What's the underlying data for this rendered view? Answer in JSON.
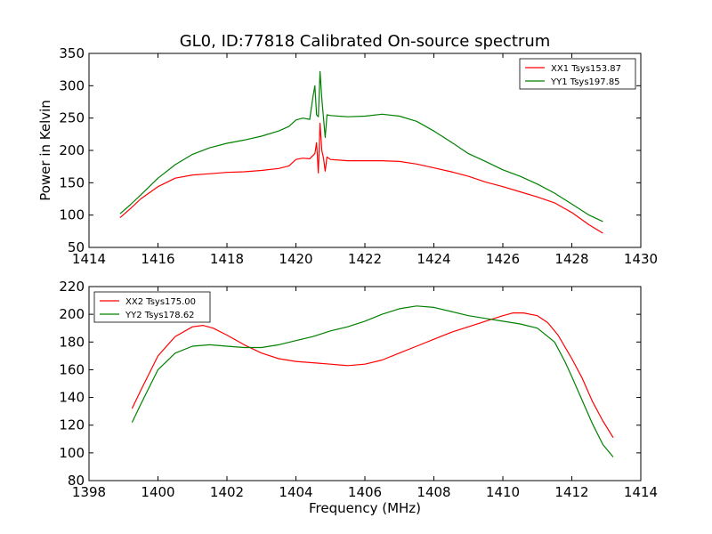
{
  "figure": {
    "title": "GL0, ID:77818 Calibrated On-source spectrum",
    "xlabel_bottom": "Frequency (MHz)"
  },
  "chart_data": [
    {
      "type": "line",
      "ylabel": "Power in Kelvin",
      "xlim": [
        1414,
        1430
      ],
      "ylim": [
        50,
        350
      ],
      "xticks": [
        1414,
        1416,
        1418,
        1420,
        1422,
        1424,
        1426,
        1428,
        1430
      ],
      "yticks": [
        50,
        100,
        150,
        200,
        250,
        300,
        350
      ],
      "legend_position": "top-right",
      "series": [
        {
          "name": "XX1 Tsys153.87",
          "color": "#ff0000",
          "x": [
            1414.9,
            1415.2,
            1415.5,
            1416.0,
            1416.5,
            1417.0,
            1417.5,
            1418.0,
            1418.5,
            1419.0,
            1419.5,
            1419.8,
            1420.0,
            1420.2,
            1420.4,
            1420.55,
            1420.6,
            1420.65,
            1420.7,
            1420.75,
            1420.8,
            1420.85,
            1420.9,
            1421.0,
            1421.5,
            1422.0,
            1422.5,
            1423.0,
            1423.5,
            1424.0,
            1424.5,
            1425.0,
            1425.5,
            1426.0,
            1426.5,
            1427.0,
            1427.5,
            1428.0,
            1428.5,
            1428.9
          ],
          "y": [
            96,
            110,
            125,
            144,
            157,
            162,
            164,
            166,
            167,
            169,
            172,
            176,
            186,
            188,
            187,
            195,
            212,
            165,
            242,
            200,
            188,
            168,
            190,
            186,
            184,
            184,
            184,
            183,
            179,
            173,
            167,
            160,
            151,
            144,
            136,
            128,
            119,
            104,
            85,
            72
          ]
        },
        {
          "name": "YY1 Tsys197.85",
          "color": "#008000",
          "x": [
            1414.9,
            1415.2,
            1415.5,
            1416.0,
            1416.5,
            1417.0,
            1417.5,
            1418.0,
            1418.5,
            1419.0,
            1419.5,
            1419.8,
            1420.0,
            1420.2,
            1420.4,
            1420.5,
            1420.55,
            1420.6,
            1420.65,
            1420.7,
            1420.75,
            1420.8,
            1420.85,
            1420.9,
            1421.0,
            1421.5,
            1422.0,
            1422.5,
            1423.0,
            1423.5,
            1424.0,
            1424.5,
            1425.0,
            1425.5,
            1426.0,
            1426.5,
            1427.0,
            1427.5,
            1428.0,
            1428.5,
            1428.9
          ],
          "y": [
            102,
            116,
            131,
            157,
            178,
            194,
            204,
            211,
            216,
            222,
            230,
            237,
            247,
            250,
            248,
            285,
            300,
            255,
            252,
            322,
            280,
            250,
            220,
            255,
            254,
            252,
            253,
            256,
            253,
            245,
            230,
            213,
            195,
            183,
            170,
            160,
            148,
            134,
            117,
            100,
            90
          ]
        }
      ]
    },
    {
      "type": "line",
      "xlabel": "Frequency (MHz)",
      "xlim": [
        1398,
        1414
      ],
      "ylim": [
        80,
        220
      ],
      "xticks": [
        1398,
        1400,
        1402,
        1404,
        1406,
        1408,
        1410,
        1412,
        1414
      ],
      "yticks": [
        80,
        100,
        120,
        140,
        160,
        180,
        200,
        220
      ],
      "legend_position": "top-left",
      "series": [
        {
          "name": "XX2 Tsys175.00",
          "color": "#ff0000",
          "x": [
            1399.25,
            1399.5,
            1400.0,
            1400.5,
            1401.0,
            1401.3,
            1401.6,
            1402.0,
            1402.5,
            1403.0,
            1403.5,
            1404.0,
            1404.5,
            1405.0,
            1405.5,
            1406.0,
            1406.5,
            1407.0,
            1407.5,
            1408.0,
            1408.5,
            1409.0,
            1409.5,
            1410.0,
            1410.3,
            1410.6,
            1411.0,
            1411.3,
            1411.6,
            1412.0,
            1412.3,
            1412.6,
            1412.9,
            1413.2
          ],
          "y": [
            132,
            145,
            170,
            184,
            191,
            192,
            190,
            185,
            178,
            172,
            168,
            166,
            165,
            164,
            163,
            164,
            167,
            172,
            177,
            182,
            187,
            191,
            195,
            199,
            201,
            201,
            199,
            194,
            185,
            168,
            154,
            137,
            123,
            111
          ]
        },
        {
          "name": "YY2 Tsys178.62",
          "color": "#008000",
          "x": [
            1399.25,
            1399.5,
            1400.0,
            1400.5,
            1401.0,
            1401.5,
            1402.0,
            1402.5,
            1403.0,
            1403.5,
            1404.0,
            1404.5,
            1405.0,
            1405.5,
            1406.0,
            1406.5,
            1407.0,
            1407.5,
            1408.0,
            1408.5,
            1409.0,
            1409.5,
            1410.0,
            1410.5,
            1411.0,
            1411.5,
            1411.8,
            1412.0,
            1412.3,
            1412.6,
            1412.9,
            1413.2
          ],
          "y": [
            122,
            135,
            160,
            172,
            177,
            178,
            177,
            176,
            176,
            178,
            181,
            184,
            188,
            191,
            195,
            200,
            204,
            206,
            205,
            202,
            199,
            197,
            195,
            193,
            190,
            180,
            166,
            155,
            138,
            121,
            106,
            97
          ]
        }
      ]
    }
  ]
}
